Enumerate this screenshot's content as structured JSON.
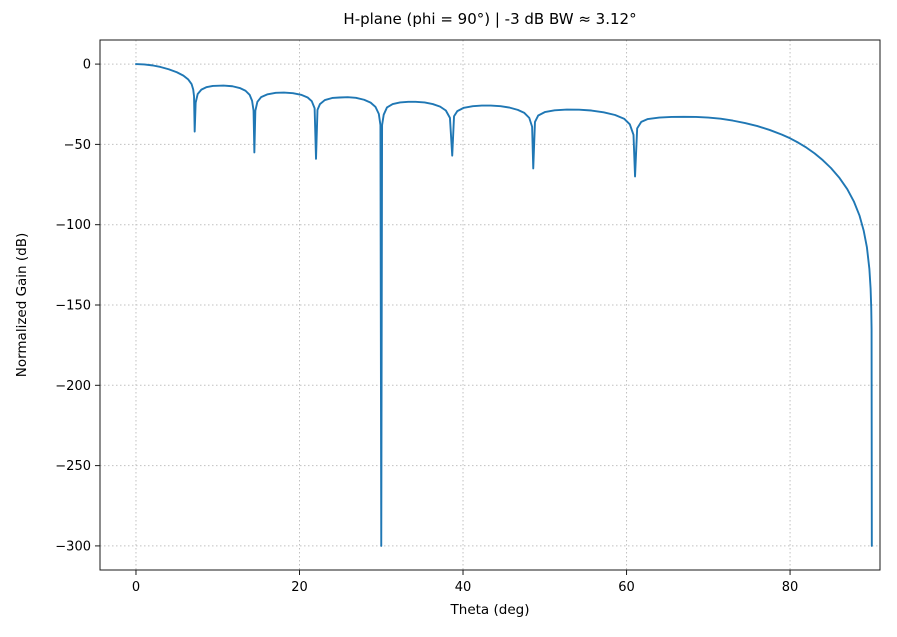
{
  "chart_data": {
    "type": "line",
    "title": "H-plane (phi = 90°)  |  -3 dB BW ≈ 3.12°",
    "xlabel": "Theta (deg)",
    "ylabel": "Normalized Gain (dB)",
    "bw_3db_deg": 3.12,
    "xlim": [
      -4.4,
      91.0
    ],
    "ylim": [
      -315,
      15
    ],
    "xticks": [
      0,
      20,
      40,
      60,
      80
    ],
    "yticks": [
      0,
      -50,
      -100,
      -150,
      -200,
      -250,
      -300
    ],
    "xtick_labels": [
      "0",
      "20",
      "40",
      "60",
      "80"
    ],
    "ytick_labels": [
      "0",
      "−50",
      "−100",
      "−150",
      "−200",
      "−250",
      "−300"
    ],
    "grid": true,
    "grid_color": "#c0c0c0",
    "line_color": "#1f77b4",
    "line_width": 1.9,
    "legend": null,
    "series": [
      {
        "name": "normalized-gain",
        "points": [
          [
            0,
            0
          ],
          [
            1,
            -0.2
          ],
          [
            2,
            -0.8
          ],
          [
            3,
            -1.8
          ],
          [
            4,
            -3.2
          ],
          [
            5,
            -5.1
          ],
          [
            5.8,
            -7.2
          ],
          [
            6.4,
            -9.6
          ],
          [
            6.8,
            -12.4
          ],
          [
            7.0,
            -15.8
          ],
          [
            7.1,
            -20
          ],
          [
            7.18,
            -42
          ],
          [
            7.3,
            -24
          ],
          [
            7.55,
            -18.6
          ],
          [
            8.0,
            -15.9
          ],
          [
            8.6,
            -14.4
          ],
          [
            9.4,
            -13.6
          ],
          [
            10.7,
            -13.4
          ],
          [
            11.8,
            -13.8
          ],
          [
            12.7,
            -14.9
          ],
          [
            13.4,
            -16.6
          ],
          [
            13.9,
            -19.1
          ],
          [
            14.2,
            -22.8
          ],
          [
            14.38,
            -29
          ],
          [
            14.48,
            -55
          ],
          [
            14.6,
            -29
          ],
          [
            14.85,
            -23.5
          ],
          [
            15.3,
            -20.6
          ],
          [
            16.1,
            -18.8
          ],
          [
            17.1,
            -17.9
          ],
          [
            18.1,
            -17.7
          ],
          [
            19.2,
            -18.1
          ],
          [
            20.2,
            -19.1
          ],
          [
            21.0,
            -20.8
          ],
          [
            21.5,
            -23.1
          ],
          [
            21.85,
            -27.5
          ],
          [
            22.02,
            -59
          ],
          [
            22.2,
            -28.5
          ],
          [
            22.5,
            -24.9
          ],
          [
            23.1,
            -22.4
          ],
          [
            24.0,
            -21.1
          ],
          [
            24.9,
            -20.8
          ],
          [
            25.9,
            -20.6
          ],
          [
            26.9,
            -21.0
          ],
          [
            27.9,
            -22.2
          ],
          [
            28.7,
            -24.0
          ],
          [
            29.3,
            -26.7
          ],
          [
            29.7,
            -31
          ],
          [
            29.9,
            -38
          ],
          [
            30.0,
            -300
          ],
          [
            30.1,
            -38
          ],
          [
            30.3,
            -31.5
          ],
          [
            30.7,
            -27
          ],
          [
            31.4,
            -24.9
          ],
          [
            32.3,
            -23.9
          ],
          [
            33.3,
            -23.5
          ],
          [
            34.2,
            -23.5
          ],
          [
            35.3,
            -23.9
          ],
          [
            36.3,
            -24.9
          ],
          [
            37.2,
            -26.5
          ],
          [
            37.9,
            -28.9
          ],
          [
            38.4,
            -33.5
          ],
          [
            38.68,
            -57
          ],
          [
            38.9,
            -32.5
          ],
          [
            39.3,
            -29.3
          ],
          [
            40.1,
            -27.2
          ],
          [
            41.2,
            -26.2
          ],
          [
            42.3,
            -25.8
          ],
          [
            43.4,
            -25.8
          ],
          [
            44.6,
            -26.2
          ],
          [
            45.7,
            -27.1
          ],
          [
            46.7,
            -28.5
          ],
          [
            47.5,
            -30.4
          ],
          [
            48.1,
            -33.5
          ],
          [
            48.45,
            -39
          ],
          [
            48.59,
            -65
          ],
          [
            48.8,
            -36
          ],
          [
            49.2,
            -32
          ],
          [
            50.0,
            -29.9
          ],
          [
            51.2,
            -28.8
          ],
          [
            52.7,
            -28.3
          ],
          [
            54.2,
            -28.4
          ],
          [
            55.7,
            -28.9
          ],
          [
            57.2,
            -30
          ],
          [
            58.6,
            -31.7
          ],
          [
            59.7,
            -34
          ],
          [
            60.4,
            -37.5
          ],
          [
            60.85,
            -44
          ],
          [
            61.04,
            -70
          ],
          [
            61.3,
            -40
          ],
          [
            61.8,
            -36
          ],
          [
            62.6,
            -34.2
          ],
          [
            64,
            -33.3
          ],
          [
            65.5,
            -32.9
          ],
          [
            67,
            -32.8
          ],
          [
            68.5,
            -32.9
          ],
          [
            70,
            -33.3
          ],
          [
            71.5,
            -34
          ],
          [
            73,
            -35.2
          ],
          [
            74.5,
            -36.7
          ],
          [
            76,
            -38.6
          ],
          [
            77.5,
            -41
          ],
          [
            79,
            -43.9
          ],
          [
            80,
            -46.2
          ],
          [
            81,
            -48.9
          ],
          [
            82,
            -52
          ],
          [
            83,
            -55.6
          ],
          [
            84,
            -59.8
          ],
          [
            85,
            -64.7
          ],
          [
            86,
            -70.6
          ],
          [
            87,
            -77.9
          ],
          [
            87.8,
            -85.5
          ],
          [
            88.5,
            -94.4
          ],
          [
            89,
            -103.6
          ],
          [
            89.4,
            -114.1
          ],
          [
            89.7,
            -127.5
          ],
          [
            89.85,
            -139.8
          ],
          [
            89.93,
            -152
          ],
          [
            89.97,
            -165
          ],
          [
            90,
            -300
          ]
        ]
      }
    ]
  },
  "layout_text": {
    "title": "H-plane (phi = 90°)  |  -3 dB BW ≈ 3.12°",
    "xlabel": "Theta (deg)",
    "ylabel": "Normalized Gain (dB)"
  }
}
